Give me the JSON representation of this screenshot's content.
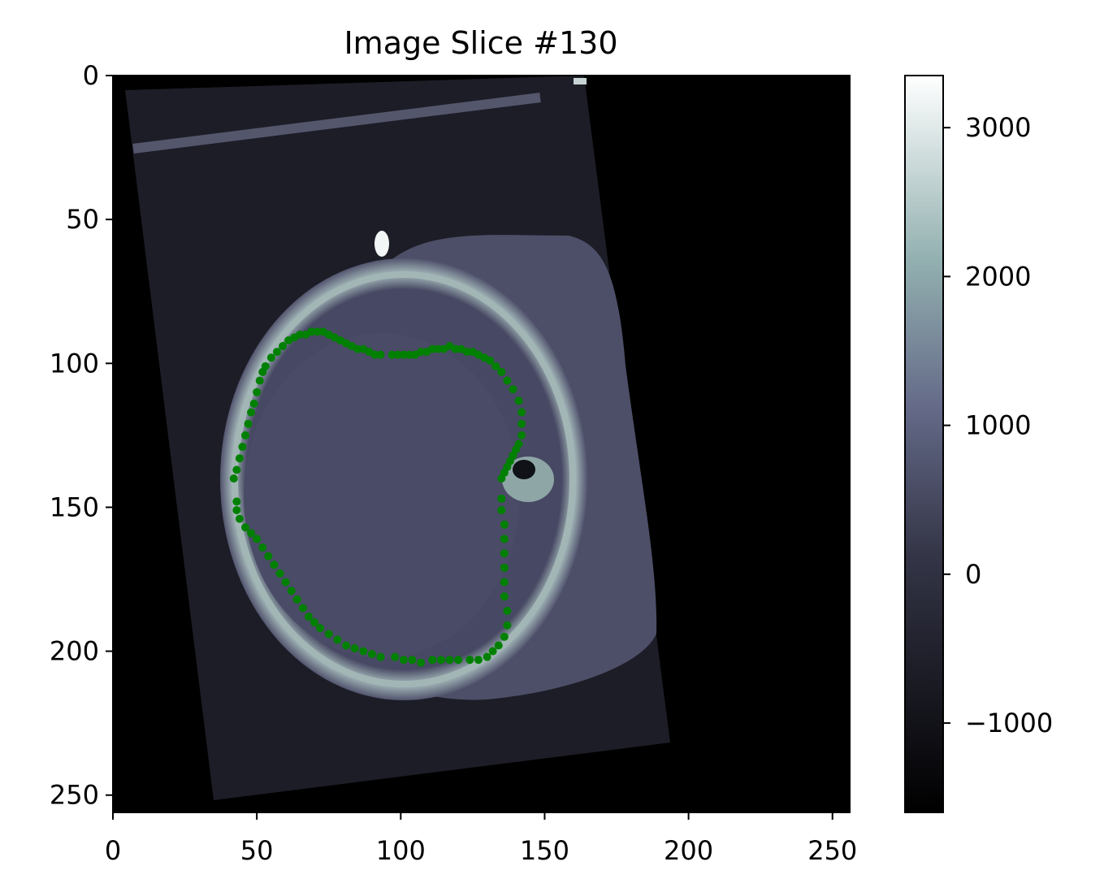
{
  "chart_data": {
    "type": "image",
    "title": "Image Slice #130",
    "xlabel": "",
    "ylabel": "",
    "xlim": [
      0,
      256
    ],
    "ylim": [
      256,
      0
    ],
    "xticks": [
      0,
      50,
      100,
      150,
      200,
      250
    ],
    "xtick_labels": [
      "0",
      "50",
      "100",
      "150",
      "200",
      "250"
    ],
    "yticks": [
      0,
      50,
      100,
      150,
      200,
      250
    ],
    "ytick_labels": [
      "0",
      "50",
      "100",
      "150",
      "200",
      "250"
    ],
    "colormap": "bone",
    "colorbar": {
      "min": -1600,
      "max": 3350,
      "ticks": [
        3000,
        2000,
        1000,
        0,
        -1000
      ],
      "tick_labels": [
        "3000",
        "2000",
        "1000",
        "0",
        "−1000"
      ]
    },
    "series": [
      {
        "type": "scatter",
        "color": "#008000",
        "points": [
          [
            42,
            140
          ],
          [
            43,
            137
          ],
          [
            44,
            133
          ],
          [
            45,
            129
          ],
          [
            46,
            125
          ],
          [
            47,
            121
          ],
          [
            48,
            117
          ],
          [
            49,
            114
          ],
          [
            50,
            110
          ],
          [
            51,
            106
          ],
          [
            52,
            103
          ],
          [
            53,
            101
          ],
          [
            55,
            98
          ],
          [
            57,
            96
          ],
          [
            59,
            94
          ],
          [
            61,
            92
          ],
          [
            63,
            91
          ],
          [
            65,
            90
          ],
          [
            67,
            90
          ],
          [
            69,
            89
          ],
          [
            71,
            89
          ],
          [
            73,
            89
          ],
          [
            75,
            90
          ],
          [
            77,
            91
          ],
          [
            79,
            92
          ],
          [
            81,
            93
          ],
          [
            83,
            94
          ],
          [
            85,
            95
          ],
          [
            87,
            95
          ],
          [
            89,
            96
          ],
          [
            91,
            97
          ],
          [
            93,
            97
          ],
          [
            97,
            97
          ],
          [
            99,
            97
          ],
          [
            101,
            97
          ],
          [
            103,
            97
          ],
          [
            105,
            97
          ],
          [
            107,
            96
          ],
          [
            109,
            96
          ],
          [
            111,
            95
          ],
          [
            113,
            95
          ],
          [
            115,
            95
          ],
          [
            117,
            94
          ],
          [
            119,
            95
          ],
          [
            121,
            95
          ],
          [
            123,
            96
          ],
          [
            125,
            96
          ],
          [
            127,
            97
          ],
          [
            129,
            98
          ],
          [
            131,
            99
          ],
          [
            133,
            101
          ],
          [
            135,
            103
          ],
          [
            137,
            106
          ],
          [
            139,
            109
          ],
          [
            141,
            113
          ],
          [
            142,
            117
          ],
          [
            142,
            121
          ],
          [
            142,
            125
          ],
          [
            141,
            128
          ],
          [
            140,
            130
          ],
          [
            139,
            132
          ],
          [
            138,
            134
          ],
          [
            137,
            136
          ],
          [
            136,
            138
          ],
          [
            135,
            140
          ],
          [
            135,
            147
          ],
          [
            135,
            151
          ],
          [
            136,
            156
          ],
          [
            136,
            161
          ],
          [
            136,
            166
          ],
          [
            136,
            171
          ],
          [
            136,
            176
          ],
          [
            136,
            181
          ],
          [
            137,
            186
          ],
          [
            137,
            191
          ],
          [
            136,
            195
          ],
          [
            134,
            198
          ],
          [
            132,
            200
          ],
          [
            130,
            202
          ],
          [
            127,
            203
          ],
          [
            124,
            203
          ],
          [
            120,
            203
          ],
          [
            117,
            203
          ],
          [
            114,
            203
          ],
          [
            111,
            203
          ],
          [
            107,
            204
          ],
          [
            104,
            203
          ],
          [
            101,
            203
          ],
          [
            98,
            202
          ],
          [
            93,
            202
          ],
          [
            90,
            201
          ],
          [
            87,
            200
          ],
          [
            84,
            199
          ],
          [
            81,
            198
          ],
          [
            78,
            196
          ],
          [
            75,
            194
          ],
          [
            72,
            192
          ],
          [
            70,
            190
          ],
          [
            68,
            188
          ],
          [
            66,
            185
          ],
          [
            64,
            182
          ],
          [
            62,
            179
          ],
          [
            60,
            176
          ],
          [
            58,
            173
          ],
          [
            56,
            170
          ],
          [
            54,
            167
          ],
          [
            52,
            164
          ],
          [
            50,
            161
          ],
          [
            48,
            159
          ],
          [
            46,
            157
          ],
          [
            44,
            154
          ],
          [
            43,
            151
          ],
          [
            43,
            148
          ]
        ]
      }
    ]
  }
}
